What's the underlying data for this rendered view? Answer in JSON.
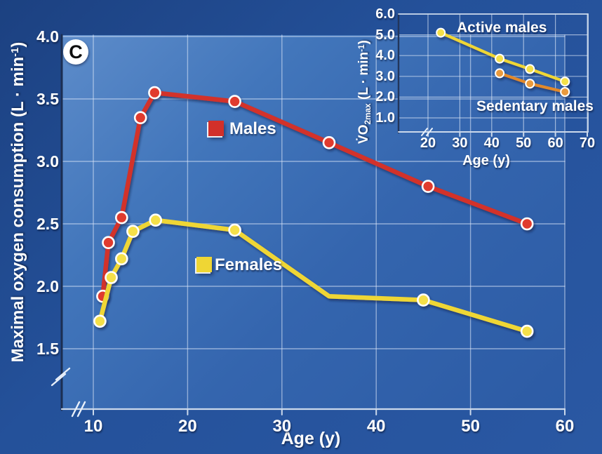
{
  "panel_label": "C",
  "colors": {
    "outer_background": "#24519a",
    "plot_background": "#3a6cb2",
    "gridline": "#d8e4f4",
    "marker_outline": "#ffffff",
    "males_red": "#d2302a",
    "females_yellow": "#efd634",
    "active_males_yellow": "#efd634",
    "sedentary_males_orange": "#e2892b",
    "text": "#ffffff",
    "panel_badge_background": "#ffffff",
    "panel_badge_text": "#0d0d0d"
  },
  "chart_data": [
    {
      "type": "line",
      "title": "",
      "xlabel": "Age (y)",
      "ylabel": "Maximal oxygen consumption (L · min⁻¹)",
      "ylabel_parts": {
        "pre": "Maximal oxygen consumption (L · min",
        "sup": "-1",
        "post": ")"
      },
      "x_ticks": [
        10,
        20,
        30,
        40,
        50,
        60
      ],
      "y_ticks": [
        4.0,
        3.5,
        3.0,
        2.5,
        2.0,
        1.5
      ],
      "xlim": [
        10,
        60
      ],
      "ylim": [
        1.5,
        4.0
      ],
      "grid": true,
      "axis_breaks": [
        "x",
        "y"
      ],
      "legend_position": "inside",
      "series": [
        {
          "name": "Males",
          "color": "#d2302a",
          "marker_color": "#e03a2d",
          "points": [
            [
              11,
              1.92
            ],
            [
              11.6,
              2.35
            ],
            [
              13,
              2.55
            ],
            [
              15,
              3.35
            ],
            [
              16.5,
              3.55
            ],
            [
              25,
              3.48
            ],
            [
              35,
              3.15
            ],
            [
              45.5,
              2.8
            ],
            [
              56,
              2.5
            ]
          ]
        },
        {
          "name": "Females",
          "color": "#efd634",
          "marker_color": "#f5e04a",
          "points": [
            [
              10.7,
              1.72
            ],
            [
              11.9,
              2.07
            ],
            [
              13,
              2.22
            ],
            [
              14.2,
              2.44
            ],
            [
              16.6,
              2.53
            ],
            [
              25,
              2.45
            ],
            [
              35,
              1.92
            ],
            [
              45,
              1.89
            ],
            [
              56,
              1.64
            ]
          ],
          "no_marker_x": [
            35
          ]
        }
      ]
    },
    {
      "type": "line",
      "title": "",
      "xlabel": "Age (y)",
      "ylabel": "V̇O2max (L · min⁻¹)",
      "ylabel_parts": {
        "pre": "V̇O",
        "sub": "2max",
        "mid": " (L · min",
        "sup": "-1",
        "post": ")"
      },
      "x_ticks": [
        20,
        30,
        40,
        50,
        60,
        70
      ],
      "y_ticks": [
        6.0,
        5.0,
        4.0,
        3.0,
        2.0,
        1.0
      ],
      "xlim": [
        20,
        70
      ],
      "ylim": [
        1.0,
        6.0
      ],
      "grid": true,
      "axis_breaks": [
        "x"
      ],
      "legend_position": "inside",
      "series": [
        {
          "name": "Active males",
          "color": "#efd634",
          "marker_color": "#f5e04a",
          "points": [
            [
              24,
              5.1
            ],
            [
              42.5,
              3.85
            ],
            [
              52,
              3.35
            ],
            [
              63,
              2.75
            ]
          ]
        },
        {
          "name": "Sedentary males",
          "color": "#e2892b",
          "marker_color": "#eb9a3c",
          "points": [
            [
              42.5,
              3.15
            ],
            [
              52,
              2.65
            ],
            [
              63,
              2.25
            ]
          ]
        }
      ]
    }
  ]
}
